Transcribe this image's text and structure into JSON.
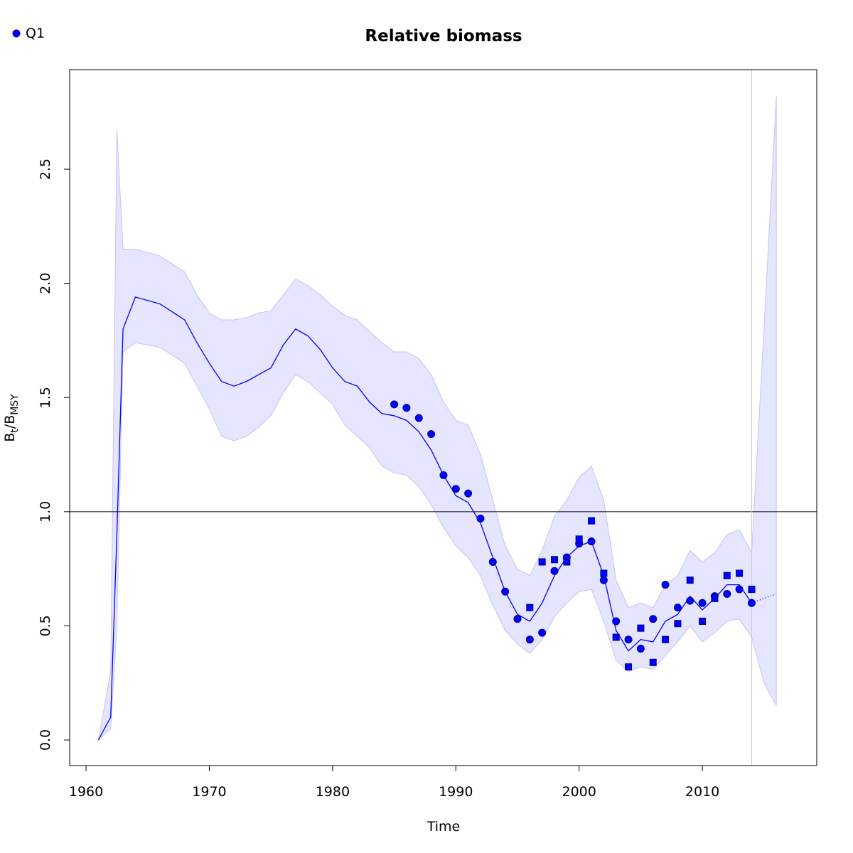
{
  "chart_data": {
    "type": "line",
    "title": "Relative biomass",
    "x_label": "Time",
    "y_label_parts": [
      {
        "text": "B"
      },
      {
        "text": "t",
        "sub": true
      },
      {
        "text": "/B"
      },
      {
        "text": "MSY",
        "sub": true
      }
    ],
    "xlim": [
      1958.67,
      2019.28
    ],
    "ylim": [
      -0.112,
      2.936
    ],
    "xticks": [
      1960,
      1970,
      1980,
      1990,
      2000,
      2010
    ],
    "yticks": [
      {
        "value": 0,
        "label": "0.0"
      },
      0.5,
      {
        "value": 1,
        "label": "1.0"
      },
      1.5,
      {
        "value": 2,
        "label": "2.0"
      },
      2.5
    ],
    "hline": 1,
    "vline": 2014,
    "legend": "top-left",
    "band": {
      "color": "#e5e5ff",
      "x": [
        1961,
        1962,
        1962.5,
        1963,
        1964,
        1966,
        1968,
        1969,
        1970,
        1971,
        1972,
        1973,
        1974,
        1975,
        1976,
        1977,
        1978,
        1979,
        1980,
        1981,
        1982,
        1983,
        1984,
        1985,
        1986,
        1987,
        1988,
        1989,
        1990,
        1991,
        1992,
        1993,
        1994,
        1995,
        1996,
        1997,
        1998,
        1999,
        2000,
        2001,
        2002,
        2003,
        2004,
        2005,
        2006,
        2007,
        2008,
        2009,
        2010,
        2011,
        2012,
        2013,
        2014,
        2015,
        2016
      ],
      "upper": [
        0,
        0.3,
        2.67,
        2.15,
        2.15,
        2.12,
        2.05,
        1.95,
        1.87,
        1.84,
        1.84,
        1.85,
        1.87,
        1.88,
        1.95,
        2.02,
        1.99,
        1.95,
        1.9,
        1.86,
        1.84,
        1.79,
        1.74,
        1.7,
        1.7,
        1.67,
        1.6,
        1.48,
        1.4,
        1.38,
        1.25,
        1.05,
        0.85,
        0.75,
        0.72,
        0.83,
        0.98,
        1.05,
        1.15,
        1.2,
        1.05,
        0.7,
        0.58,
        0.6,
        0.58,
        0.68,
        0.72,
        0.83,
        0.78,
        0.82,
        0.9,
        0.92,
        0.82,
        1.8,
        2.82
      ],
      "lower": [
        0,
        0.05,
        0.5,
        1.7,
        1.74,
        1.72,
        1.65,
        1.55,
        1.45,
        1.33,
        1.31,
        1.33,
        1.37,
        1.42,
        1.52,
        1.6,
        1.57,
        1.52,
        1.47,
        1.38,
        1.33,
        1.28,
        1.2,
        1.17,
        1.16,
        1.11,
        1.03,
        0.93,
        0.85,
        0.8,
        0.72,
        0.59,
        0.48,
        0.42,
        0.38,
        0.44,
        0.54,
        0.6,
        0.65,
        0.66,
        0.52,
        0.35,
        0.3,
        0.32,
        0.31,
        0.37,
        0.43,
        0.5,
        0.43,
        0.47,
        0.52,
        0.53,
        0.45,
        0.25,
        0.15
      ]
    },
    "series": [
      {
        "style": "line",
        "color": "#0000ff",
        "x": [
          1961,
          1962,
          1962.5,
          1963,
          1964,
          1966,
          1968,
          1969,
          1970,
          1971,
          1972,
          1973,
          1974,
          1975,
          1976,
          1977,
          1978,
          1979,
          1980,
          1981,
          1982,
          1983,
          1984,
          1985,
          1986,
          1987,
          1988,
          1989,
          1990,
          1991,
          1992,
          1993,
          1994,
          1995,
          1996,
          1997,
          1998,
          1999,
          2000,
          2001,
          2002,
          2003,
          2004,
          2005,
          2006,
          2007,
          2008,
          2009,
          2010,
          2011,
          2012,
          2013,
          2014,
          2015,
          2016
        ],
        "values": [
          0,
          0.1,
          0.9,
          1.8,
          1.94,
          1.91,
          1.84,
          1.74,
          1.65,
          1.57,
          1.55,
          1.57,
          1.6,
          1.63,
          1.73,
          1.8,
          1.77,
          1.71,
          1.63,
          1.57,
          1.55,
          1.48,
          1.43,
          1.42,
          1.4,
          1.35,
          1.27,
          1.16,
          1.07,
          1.04,
          0.95,
          0.8,
          0.65,
          0.55,
          0.52,
          0.6,
          0.72,
          0.8,
          0.85,
          0.87,
          0.72,
          0.48,
          0.39,
          0.44,
          0.43,
          0.52,
          0.55,
          0.63,
          0.57,
          0.62,
          0.68,
          0.68,
          0.6,
          null,
          null
        ]
      },
      {
        "style": "dotted",
        "color": "#0000ff",
        "x": [
          2014,
          2015,
          2016
        ],
        "values": [
          0.6,
          0.62,
          0.64
        ]
      },
      {
        "style": "circle",
        "name": "Q1",
        "color": "#0000ff",
        "x": [
          1985,
          1986,
          1987,
          1988,
          1989,
          1990,
          1991,
          1992,
          1993,
          1994,
          1995,
          1996,
          1997,
          1998,
          1999,
          2000,
          2001,
          2002,
          2003,
          2004,
          2005,
          2006,
          2007,
          2008,
          2009,
          2010,
          2011,
          2012,
          2013,
          2014
        ],
        "values": [
          1.47,
          1.455,
          1.41,
          1.34,
          1.16,
          1.1,
          1.08,
          0.97,
          0.78,
          0.65,
          0.53,
          0.44,
          0.47,
          0.74,
          0.8,
          0.86,
          0.87,
          0.7,
          0.52,
          0.44,
          0.4,
          0.53,
          0.68,
          0.58,
          0.61,
          0.6,
          0.63,
          0.64,
          0.66,
          0.6
        ]
      },
      {
        "style": "square",
        "color": "#0000ff",
        "x": [
          1996,
          1997,
          1998,
          1999,
          2000,
          2001,
          2002,
          2003,
          2004,
          2005,
          2006,
          2007,
          2008,
          2009,
          2010,
          2011,
          2012,
          2013,
          2014
        ],
        "values": [
          0.58,
          0.78,
          0.79,
          0.78,
          0.88,
          0.96,
          0.73,
          0.45,
          0.32,
          0.49,
          0.34,
          0.44,
          0.51,
          0.7,
          0.52,
          0.62,
          0.72,
          0.73,
          0.66
        ]
      }
    ]
  }
}
